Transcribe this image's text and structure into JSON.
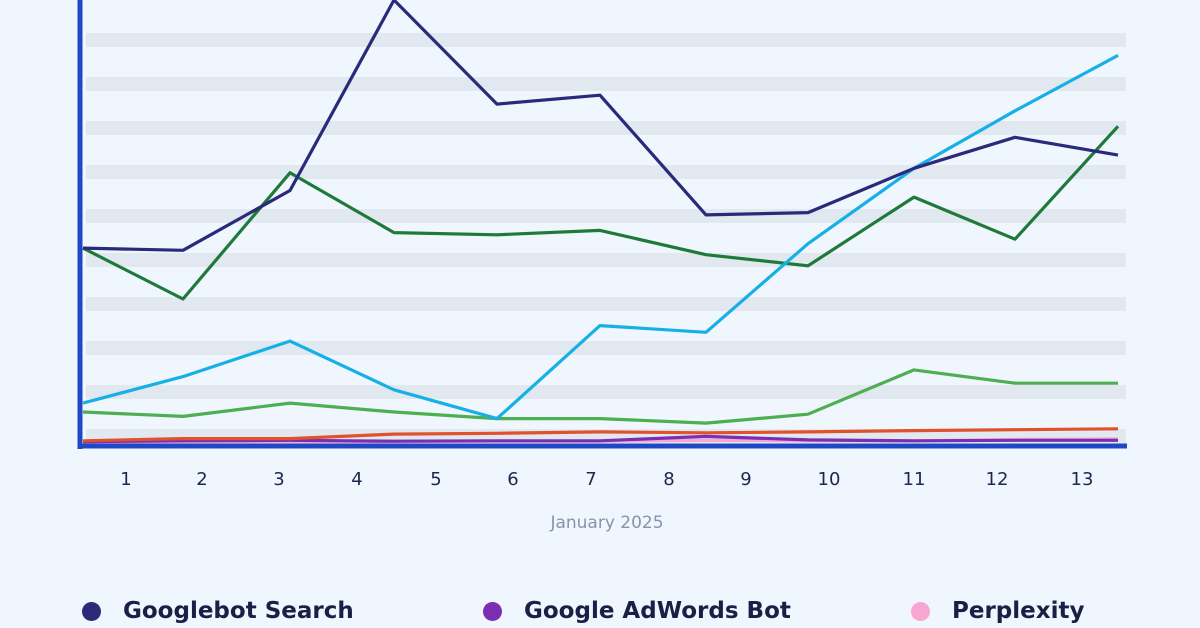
{
  "chart_data": {
    "type": "line",
    "xlabel": "January 2025",
    "ylabel": "",
    "categories": [
      "1",
      "2",
      "3",
      "4",
      "5",
      "6",
      "7",
      "8",
      "9",
      "10",
      "11",
      "12",
      "13"
    ],
    "ylim": [
      0,
      100
    ],
    "grid": true,
    "legend_position": "bottom",
    "series": [
      {
        "name": "Googlebot Search",
        "color": "#2b2a7a",
        "values": [
          44,
          43.5,
          57,
          100,
          76.5,
          78.5,
          51.5,
          52,
          62,
          69,
          65,
          null,
          null
        ]
      },
      {
        "name": "",
        "color": "#17b0e6",
        "values": [
          9,
          15,
          23,
          12,
          5.5,
          26.5,
          25,
          45,
          62,
          75,
          87.5,
          null,
          null
        ]
      },
      {
        "name": "",
        "color": "#1f7a3a",
        "values": [
          44,
          32.5,
          61,
          47.5,
          47,
          48,
          42.5,
          40,
          55.5,
          46,
          71.5,
          null,
          null
        ]
      },
      {
        "name": "",
        "color": "#4caf50",
        "values": [
          7,
          6,
          9,
          7,
          5.5,
          5.5,
          4.5,
          6.5,
          16.5,
          13.5,
          13.5,
          null,
          null
        ]
      },
      {
        "name": "",
        "color": "#e0522b",
        "values": [
          0.5,
          1,
          1,
          2,
          2.2,
          2.5,
          2.3,
          2.5,
          2.8,
          3,
          3.2,
          null,
          null
        ]
      },
      {
        "name": "Google AdWords Bot",
        "color": "#7a2fb0",
        "values": [
          0.3,
          0.5,
          0.6,
          0.4,
          0.5,
          0.5,
          1.5,
          0.7,
          0.5,
          0.6,
          0.6,
          null,
          null
        ]
      },
      {
        "name": "Perplexity",
        "color": "#f7a6d2",
        "values": [
          0.2,
          0.3,
          0.3,
          0.3,
          0.4,
          0.4,
          0.6,
          0.5,
          0.5,
          0.8,
          0.9,
          null,
          null
        ]
      }
    ]
  },
  "legend": [
    {
      "label": "Googlebot Search",
      "color": "#2b2a7a"
    },
    {
      "label": "Google AdWords Bot",
      "color": "#7a2fb0"
    },
    {
      "label": "Perplexity",
      "color": "#f7a6d2"
    }
  ]
}
